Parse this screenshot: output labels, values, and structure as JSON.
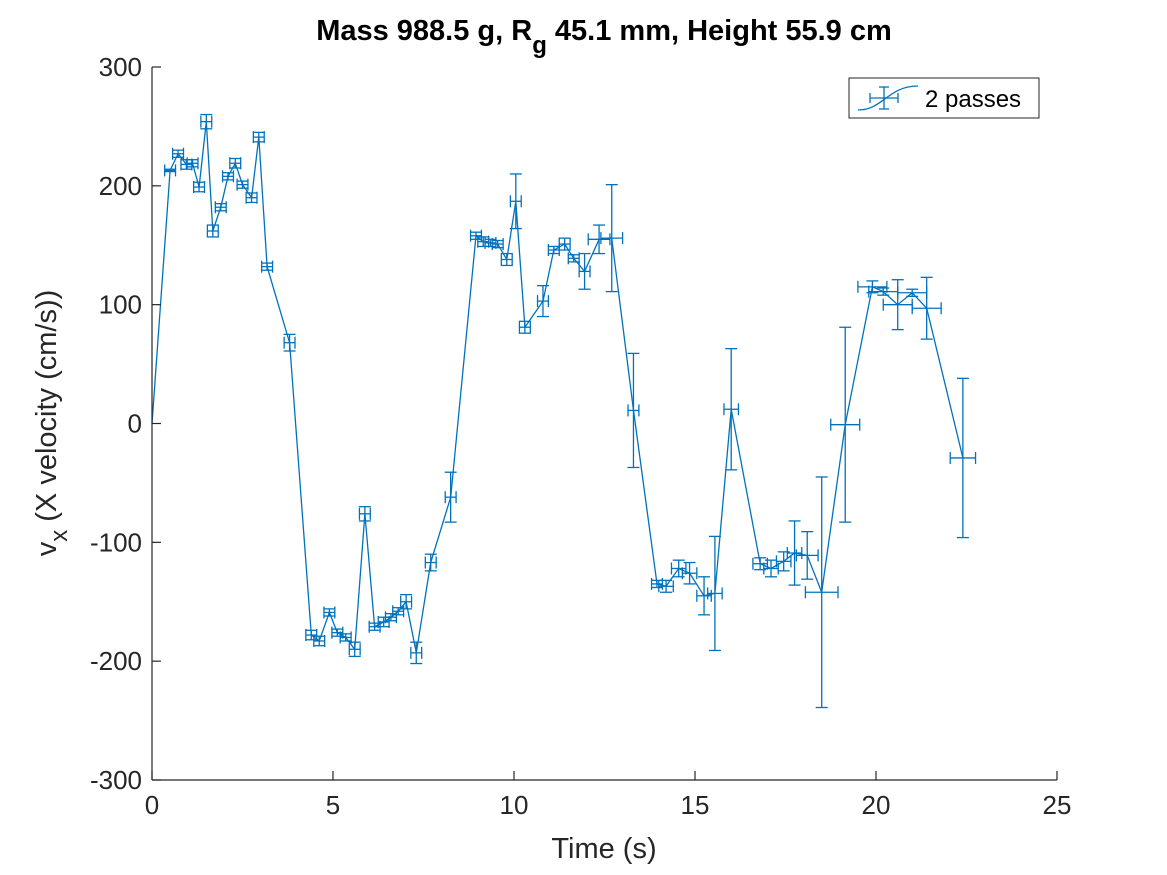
{
  "title": {
    "prefix": "Mass 988.5 g, R",
    "subscript": "g",
    "suffix": " 45.1 mm,  Height 55.9 cm"
  },
  "axes": {
    "xlabel": "Time (s)",
    "ylabel_main": "v",
    "ylabel_sub": "x",
    "ylabel_rest": " (X velocity (cm/s))"
  },
  "colors": {
    "series": "#0072BD",
    "axis": "#262626",
    "background": "#ffffff"
  },
  "chart_data": {
    "type": "line",
    "xlim": [
      0,
      25
    ],
    "ylim": [
      -300,
      300
    ],
    "xticks": [
      0,
      5,
      10,
      15,
      20,
      25
    ],
    "yticks": [
      -300,
      -200,
      -100,
      0,
      100,
      200,
      300
    ],
    "grid": false,
    "legend_position": "top-right",
    "series": [
      {
        "name": "2 passes",
        "points": [
          {
            "x": 0.0,
            "y": 0,
            "yerr": 0,
            "xerr": 0
          },
          {
            "x": 0.5,
            "y": 213,
            "yerr": 1,
            "xerr": 0.15
          },
          {
            "x": 0.72,
            "y": 227,
            "yerr": 3,
            "xerr": 0.15
          },
          {
            "x": 0.95,
            "y": 218,
            "yerr": 4,
            "xerr": 0.15
          },
          {
            "x": 1.12,
            "y": 219,
            "yerr": 3,
            "xerr": 0.15
          },
          {
            "x": 1.3,
            "y": 199,
            "yerr": 4,
            "xerr": 0.15
          },
          {
            "x": 1.5,
            "y": 254,
            "yerr": 6,
            "xerr": 0.15
          },
          {
            "x": 1.68,
            "y": 162,
            "yerr": 5,
            "xerr": 0.15
          },
          {
            "x": 1.9,
            "y": 182,
            "yerr": 3,
            "xerr": 0.15
          },
          {
            "x": 2.1,
            "y": 208,
            "yerr": 3,
            "xerr": 0.15
          },
          {
            "x": 2.3,
            "y": 219,
            "yerr": 4,
            "xerr": 0.15
          },
          {
            "x": 2.5,
            "y": 201,
            "yerr": 3,
            "xerr": 0.15
          },
          {
            "x": 2.75,
            "y": 190,
            "yerr": 4,
            "xerr": 0.15
          },
          {
            "x": 2.95,
            "y": 241,
            "yerr": 4,
            "xerr": 0.15
          },
          {
            "x": 3.18,
            "y": 132,
            "yerr": 3,
            "xerr": 0.15
          },
          {
            "x": 3.8,
            "y": 68,
            "yerr": 7,
            "xerr": 0.15
          },
          {
            "x": 4.4,
            "y": -178,
            "yerr": 4,
            "xerr": 0.15
          },
          {
            "x": 4.62,
            "y": -183,
            "yerr": 4,
            "xerr": 0.15
          },
          {
            "x": 4.9,
            "y": -159,
            "yerr": 3,
            "xerr": 0.15
          },
          {
            "x": 5.12,
            "y": -176,
            "yerr": 3,
            "xerr": 0.15
          },
          {
            "x": 5.35,
            "y": -180,
            "yerr": 3,
            "xerr": 0.15
          },
          {
            "x": 5.6,
            "y": -190,
            "yerr": 6,
            "xerr": 0.15
          },
          {
            "x": 5.88,
            "y": -76,
            "yerr": 6,
            "xerr": 0.15
          },
          {
            "x": 6.15,
            "y": -171,
            "yerr": 3,
            "xerr": 0.15
          },
          {
            "x": 6.4,
            "y": -167,
            "yerr": 4,
            "xerr": 0.15
          },
          {
            "x": 6.6,
            "y": -163,
            "yerr": 3,
            "xerr": 0.15
          },
          {
            "x": 6.8,
            "y": -158,
            "yerr": 3,
            "xerr": 0.15
          },
          {
            "x": 7.02,
            "y": -150,
            "yerr": 6,
            "xerr": 0.15
          },
          {
            "x": 7.3,
            "y": -193,
            "yerr": 9,
            "xerr": 0.15
          },
          {
            "x": 7.7,
            "y": -117,
            "yerr": 7,
            "xerr": 0.15
          },
          {
            "x": 8.25,
            "y": -62,
            "yerr": 21,
            "xerr": 0.15
          },
          {
            "x": 8.95,
            "y": 158,
            "yerr": 3,
            "xerr": 0.15
          },
          {
            "x": 9.15,
            "y": 153,
            "yerr": 4,
            "xerr": 0.15
          },
          {
            "x": 9.35,
            "y": 152,
            "yerr": 3,
            "xerr": 0.15
          },
          {
            "x": 9.55,
            "y": 151,
            "yerr": 3,
            "xerr": 0.15
          },
          {
            "x": 9.8,
            "y": 138,
            "yerr": 5,
            "xerr": 0.15
          },
          {
            "x": 10.05,
            "y": 187,
            "yerr": 23,
            "xerr": 0.15
          },
          {
            "x": 10.3,
            "y": 81,
            "yerr": 5,
            "xerr": 0.15
          },
          {
            "x": 10.8,
            "y": 103,
            "yerr": 13,
            "xerr": 0.15
          },
          {
            "x": 11.1,
            "y": 146,
            "yerr": 3,
            "xerr": 0.15
          },
          {
            "x": 11.4,
            "y": 151,
            "yerr": 5,
            "xerr": 0.15
          },
          {
            "x": 11.65,
            "y": 139,
            "yerr": 3,
            "xerr": 0.15
          },
          {
            "x": 11.95,
            "y": 128,
            "yerr": 15,
            "xerr": 0.15
          },
          {
            "x": 12.35,
            "y": 155,
            "yerr": 12,
            "xerr": 0.3
          },
          {
            "x": 12.7,
            "y": 156,
            "yerr": 45,
            "xerr": 0.3
          },
          {
            "x": 13.3,
            "y": 11,
            "yerr": 48,
            "xerr": 0.15
          },
          {
            "x": 13.95,
            "y": -135,
            "yerr": 3,
            "xerr": 0.15
          },
          {
            "x": 14.2,
            "y": -137,
            "yerr": 5,
            "xerr": 0.2
          },
          {
            "x": 14.55,
            "y": -122,
            "yerr": 7,
            "xerr": 0.2
          },
          {
            "x": 14.85,
            "y": -126,
            "yerr": 9,
            "xerr": 0.2
          },
          {
            "x": 15.25,
            "y": -145,
            "yerr": 16,
            "xerr": 0.2
          },
          {
            "x": 15.55,
            "y": -143,
            "yerr": 48,
            "xerr": 0.2
          },
          {
            "x": 16.0,
            "y": 12,
            "yerr": 51,
            "xerr": 0.2
          },
          {
            "x": 16.8,
            "y": -118,
            "yerr": 5,
            "xerr": 0.2
          },
          {
            "x": 17.1,
            "y": -122,
            "yerr": 7,
            "xerr": 0.2
          },
          {
            "x": 17.45,
            "y": -116,
            "yerr": 8,
            "xerr": 0.2
          },
          {
            "x": 17.75,
            "y": -109,
            "yerr": 27,
            "xerr": 0.2
          },
          {
            "x": 18.1,
            "y": -111,
            "yerr": 20,
            "xerr": 0.3
          },
          {
            "x": 18.5,
            "y": -142,
            "yerr": 97,
            "xerr": 0.45
          },
          {
            "x": 19.15,
            "y": -1,
            "yerr": 82,
            "xerr": 0.4
          },
          {
            "x": 19.9,
            "y": 115,
            "yerr": 5,
            "xerr": 0.4
          },
          {
            "x": 20.2,
            "y": 111,
            "yerr": 3,
            "xerr": 0.4
          },
          {
            "x": 20.6,
            "y": 100,
            "yerr": 21,
            "xerr": 0.4
          },
          {
            "x": 21.0,
            "y": 110,
            "yerr": 3,
            "xerr": 0.4
          },
          {
            "x": 21.4,
            "y": 97,
            "yerr": 26,
            "xerr": 0.4
          },
          {
            "x": 22.4,
            "y": -29,
            "yerr": 67,
            "xerr": 0.35
          }
        ]
      }
    ]
  }
}
